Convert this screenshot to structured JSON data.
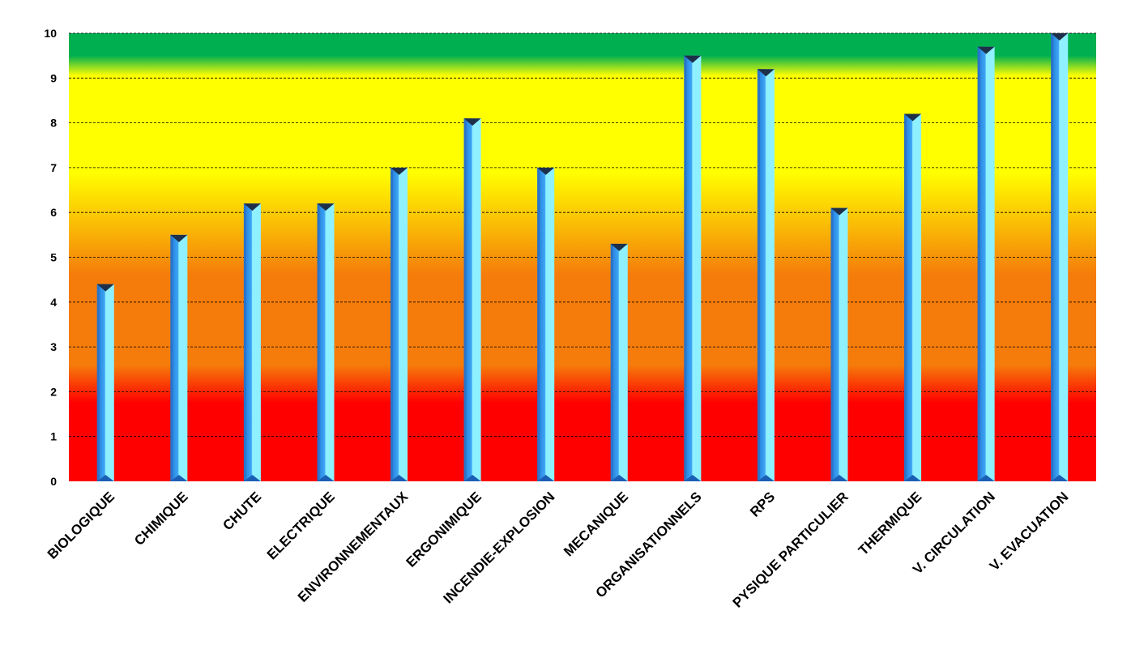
{
  "chart_data": {
    "type": "bar",
    "title": "",
    "xlabel": "",
    "ylabel": "",
    "ylim": [
      0,
      10
    ],
    "yticks": [
      0,
      1,
      2,
      3,
      4,
      5,
      6,
      7,
      8,
      9,
      10
    ],
    "grid": true,
    "legend": "none",
    "categories": [
      "BIOLOGIQUE",
      "CHIMIQUE",
      "CHUTE",
      "ELECTRIQUE",
      "ENVIRONNEMENTAUX",
      "ERGONIMIQUE",
      "INCENDIE-EXPLOSION",
      "MECANIQUE",
      "ORGANISATIONNELS",
      "RPS",
      "PYSIQUE PARTICULIER",
      "THERMIQUE",
      "V. CIRCULATION",
      "V. EVACUATION"
    ],
    "values": [
      4.4,
      5.5,
      6.2,
      6.2,
      7.0,
      8.1,
      7.0,
      5.3,
      9.5,
      9.2,
      6.1,
      8.2,
      9.7,
      10.0
    ],
    "background_bands": [
      {
        "from": 0,
        "to": 2,
        "color": "#ff0000"
      },
      {
        "from": 2,
        "to": 5,
        "color": "#f57c0a"
      },
      {
        "from": 5,
        "to": 9,
        "color": "#ffff00"
      },
      {
        "from": 9,
        "to": 10,
        "color": "#00b050"
      }
    ],
    "bar_colors": {
      "left": "#1f7ad8",
      "mid": "#3fa6f5",
      "right": "#8ff0ff",
      "cap": "#1d2f49"
    }
  }
}
